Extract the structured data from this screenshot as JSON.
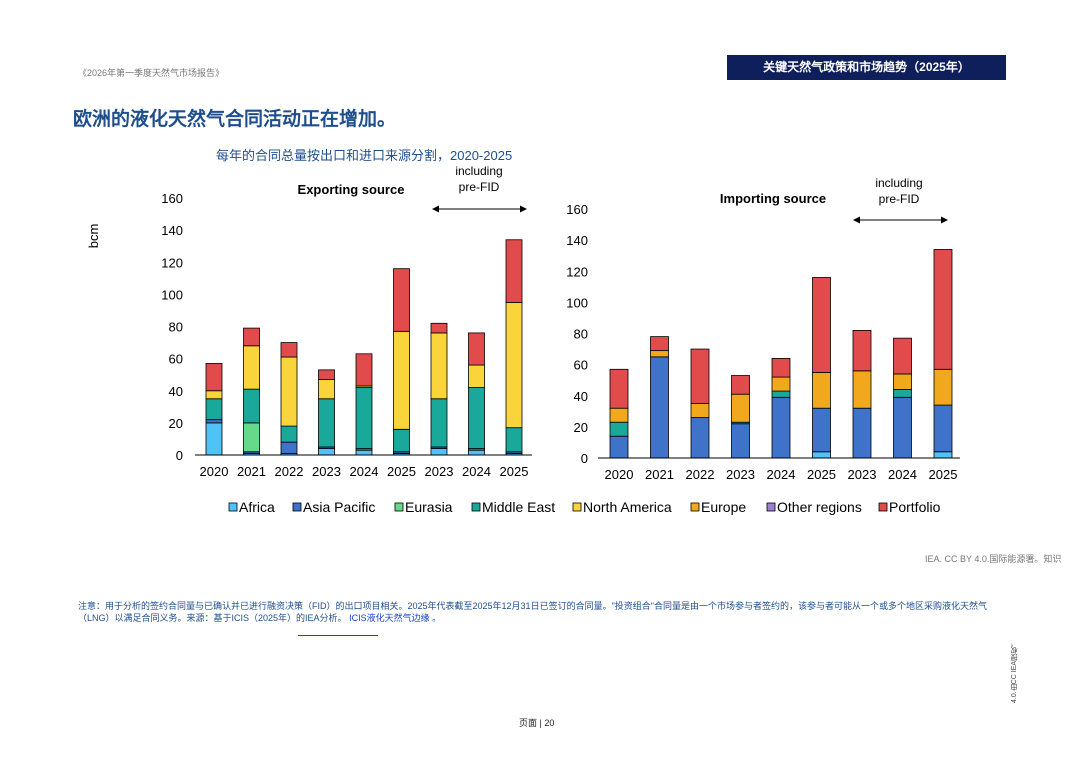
{
  "doc_ref": "《2026年第一季度天然气市场报告》",
  "header_title": "关键天然气政策和市场趋势（2025年）",
  "main_title": "欧洲的液化天然气合同活动正在增加。",
  "chart_subtitle": "每年的合同总量按出口和进口来源分割，2020-2025",
  "credit": "IEA. CC BY 4.0.国际能源署。知识",
  "note_text": "注意：用于分析的签约合同量与已确认并已进行融资决策（FID）的出口项目相关。2025年代表截至2025年12月31日已签订的合同量。\"投资组合\"合同量是由一个市场参与者签约的，该参与者可能从一个或多个地区采购液化天然气（LNG）以满足合同义务。来源：基于ICIS（2025年）的IEA分析。",
  "note_link": "ICIS液化天然气边缘",
  "note_end": "。",
  "side_text": "4.0.由CC IEA授权。",
  "page_number": "页面 | 20",
  "chart_data": [
    {
      "type": "bar",
      "stacked": true,
      "title": "Exporting source",
      "ylabel": "bcm",
      "ylim": [
        0,
        160
      ],
      "yticks": [
        0,
        20,
        40,
        60,
        80,
        100,
        120,
        140,
        160
      ],
      "categories": [
        "2020",
        "2021",
        "2022",
        "2023",
        "2024",
        "2025",
        "2023",
        "2024",
        "2025"
      ],
      "annotation": "including\npre-FID",
      "series": [
        {
          "name": "Africa",
          "color": "#4fc3f7",
          "values": [
            20,
            1,
            1,
            4,
            3,
            1,
            4,
            3,
            1
          ]
        },
        {
          "name": "Asia Pacific",
          "color": "#3f72c9",
          "values": [
            2,
            1,
            7,
            1,
            1,
            1,
            1,
            1,
            1
          ]
        },
        {
          "name": "Eurasia",
          "color": "#66d98a",
          "values": [
            0,
            18,
            0,
            0,
            0,
            0,
            0,
            0,
            0
          ]
        },
        {
          "name": "Middle East",
          "color": "#1aa89a",
          "values": [
            13,
            21,
            10,
            30,
            38,
            14,
            30,
            38,
            15
          ]
        },
        {
          "name": "North America",
          "color": "#f9d43a",
          "values": [
            5,
            27,
            43,
            12,
            1,
            61,
            41,
            14,
            78
          ]
        },
        {
          "name": "Europe",
          "color": "#f2a81d",
          "values": [
            0,
            0,
            0,
            0,
            0,
            0,
            0,
            0,
            0
          ]
        },
        {
          "name": "Other regions",
          "color": "#9b7fd1",
          "values": [
            0,
            0,
            0,
            0,
            0,
            0,
            0,
            0,
            0
          ]
        },
        {
          "name": "Portfolio",
          "color": "#e24b4b",
          "values": [
            17,
            11,
            9,
            6,
            20,
            39,
            6,
            20,
            39
          ]
        }
      ]
    },
    {
      "type": "bar",
      "stacked": true,
      "title": "Importing source",
      "ylim": [
        0,
        160
      ],
      "yticks": [
        0,
        20,
        40,
        60,
        80,
        100,
        120,
        140,
        160
      ],
      "categories": [
        "2020",
        "2021",
        "2022",
        "2023",
        "2024",
        "2025",
        "2023",
        "2024",
        "2025"
      ],
      "annotation": "including\npre-FID",
      "series": [
        {
          "name": "Africa",
          "color": "#4fc3f7",
          "values": [
            0,
            0,
            0,
            0,
            0,
            4,
            0,
            0,
            4
          ]
        },
        {
          "name": "Asia Pacific",
          "color": "#3f72c9",
          "values": [
            14,
            65,
            26,
            22,
            39,
            28,
            32,
            39,
            30
          ]
        },
        {
          "name": "Eurasia",
          "color": "#66d98a",
          "values": [
            0,
            0,
            0,
            0,
            0,
            0,
            0,
            0,
            0
          ]
        },
        {
          "name": "Middle East",
          "color": "#1aa89a",
          "values": [
            9,
            0,
            0,
            1,
            4,
            0,
            0,
            5,
            0
          ]
        },
        {
          "name": "North America",
          "color": "#f9d43a",
          "values": [
            0,
            0,
            0,
            0,
            0,
            0,
            0,
            0,
            0
          ]
        },
        {
          "name": "Europe",
          "color": "#f2a81d",
          "values": [
            9,
            4,
            9,
            18,
            9,
            23,
            24,
            10,
            23
          ]
        },
        {
          "name": "Other regions",
          "color": "#9b7fd1",
          "values": [
            0,
            0,
            0,
            0,
            0,
            0,
            0,
            0,
            0
          ]
        },
        {
          "name": "Portfolio",
          "color": "#e24b4b",
          "values": [
            25,
            9,
            35,
            12,
            12,
            61,
            26,
            23,
            77
          ]
        }
      ]
    }
  ]
}
